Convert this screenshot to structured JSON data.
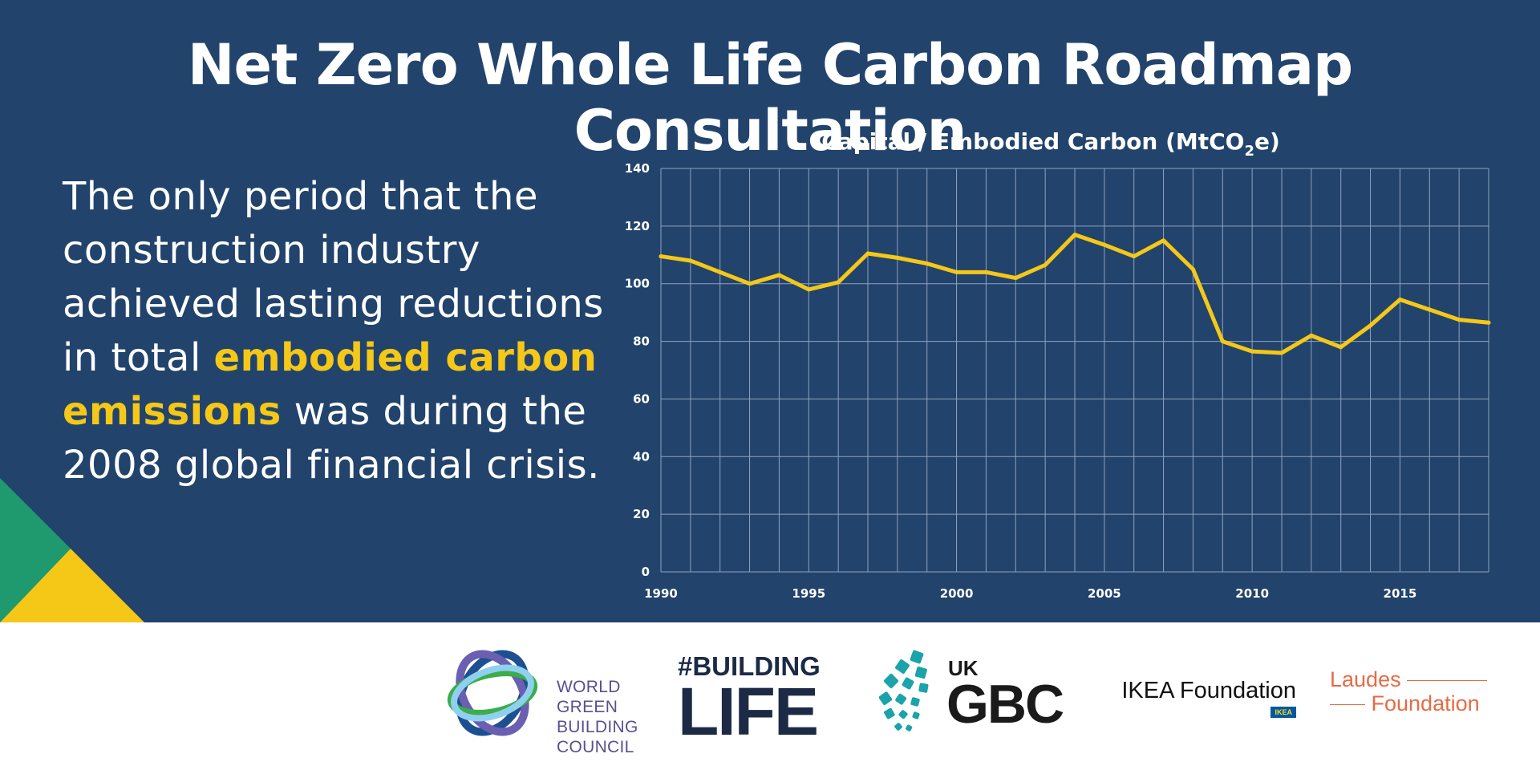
{
  "title": "Net Zero Whole Life Carbon Roadmap Consultation",
  "body_text": {
    "before": "The only period that the construction industry achieved lasting reductions in total",
    "highlight": "embodied carbon emissions",
    "after": "was during the 2008 global financial crisis."
  },
  "colors": {
    "background": "#22436c",
    "highlight": "#f5c818",
    "line": "#f5c818",
    "grid": "#8fa3bf",
    "footer": "#ffffff"
  },
  "chart_data": {
    "type": "line",
    "title_main": "Capital / Embodied Carbon (MtCO",
    "title_sub": "2",
    "title_end": "e)",
    "xlabel": "",
    "ylabel": "",
    "x": [
      1990,
      1991,
      1992,
      1993,
      1994,
      1995,
      1996,
      1997,
      1998,
      1999,
      2000,
      2001,
      2002,
      2003,
      2004,
      2005,
      2006,
      2007,
      2008,
      2009,
      2010,
      2011,
      2012,
      2013,
      2014,
      2015,
      2016,
      2017,
      2018
    ],
    "series": [
      {
        "values": [
          109.5,
          108,
          104,
          100,
          103,
          98,
          100.5,
          110.5,
          109,
          107,
          104,
          104,
          102,
          106.5,
          117,
          113.5,
          109.5,
          115,
          105,
          80,
          76.5,
          76,
          82,
          78,
          85.5,
          94.5,
          91,
          87.5,
          86.5
        ]
      }
    ],
    "xlim": [
      1990,
      2018
    ],
    "ylim": [
      0,
      140
    ],
    "xticks": [
      "1990",
      "1995",
      "2000",
      "2005",
      "2010",
      "2015"
    ],
    "yticks": [
      "0",
      "20",
      "40",
      "60",
      "80",
      "100",
      "120",
      "140"
    ],
    "grid": true,
    "legend": "none"
  },
  "logos": {
    "wgbc": [
      "WORLD",
      "GREEN",
      "BUILDING",
      "COUNCIL"
    ],
    "building_life_hash": "#BUILDING",
    "building_life_word": "LIFE",
    "ukgbc_uk": "UK",
    "ukgbc_gbc": "GBC",
    "ikea_foundation": "IKEA Foundation",
    "ikea_badge": "IKEA",
    "laudes_line1": "Laudes",
    "laudes_line2": "Foundation"
  }
}
